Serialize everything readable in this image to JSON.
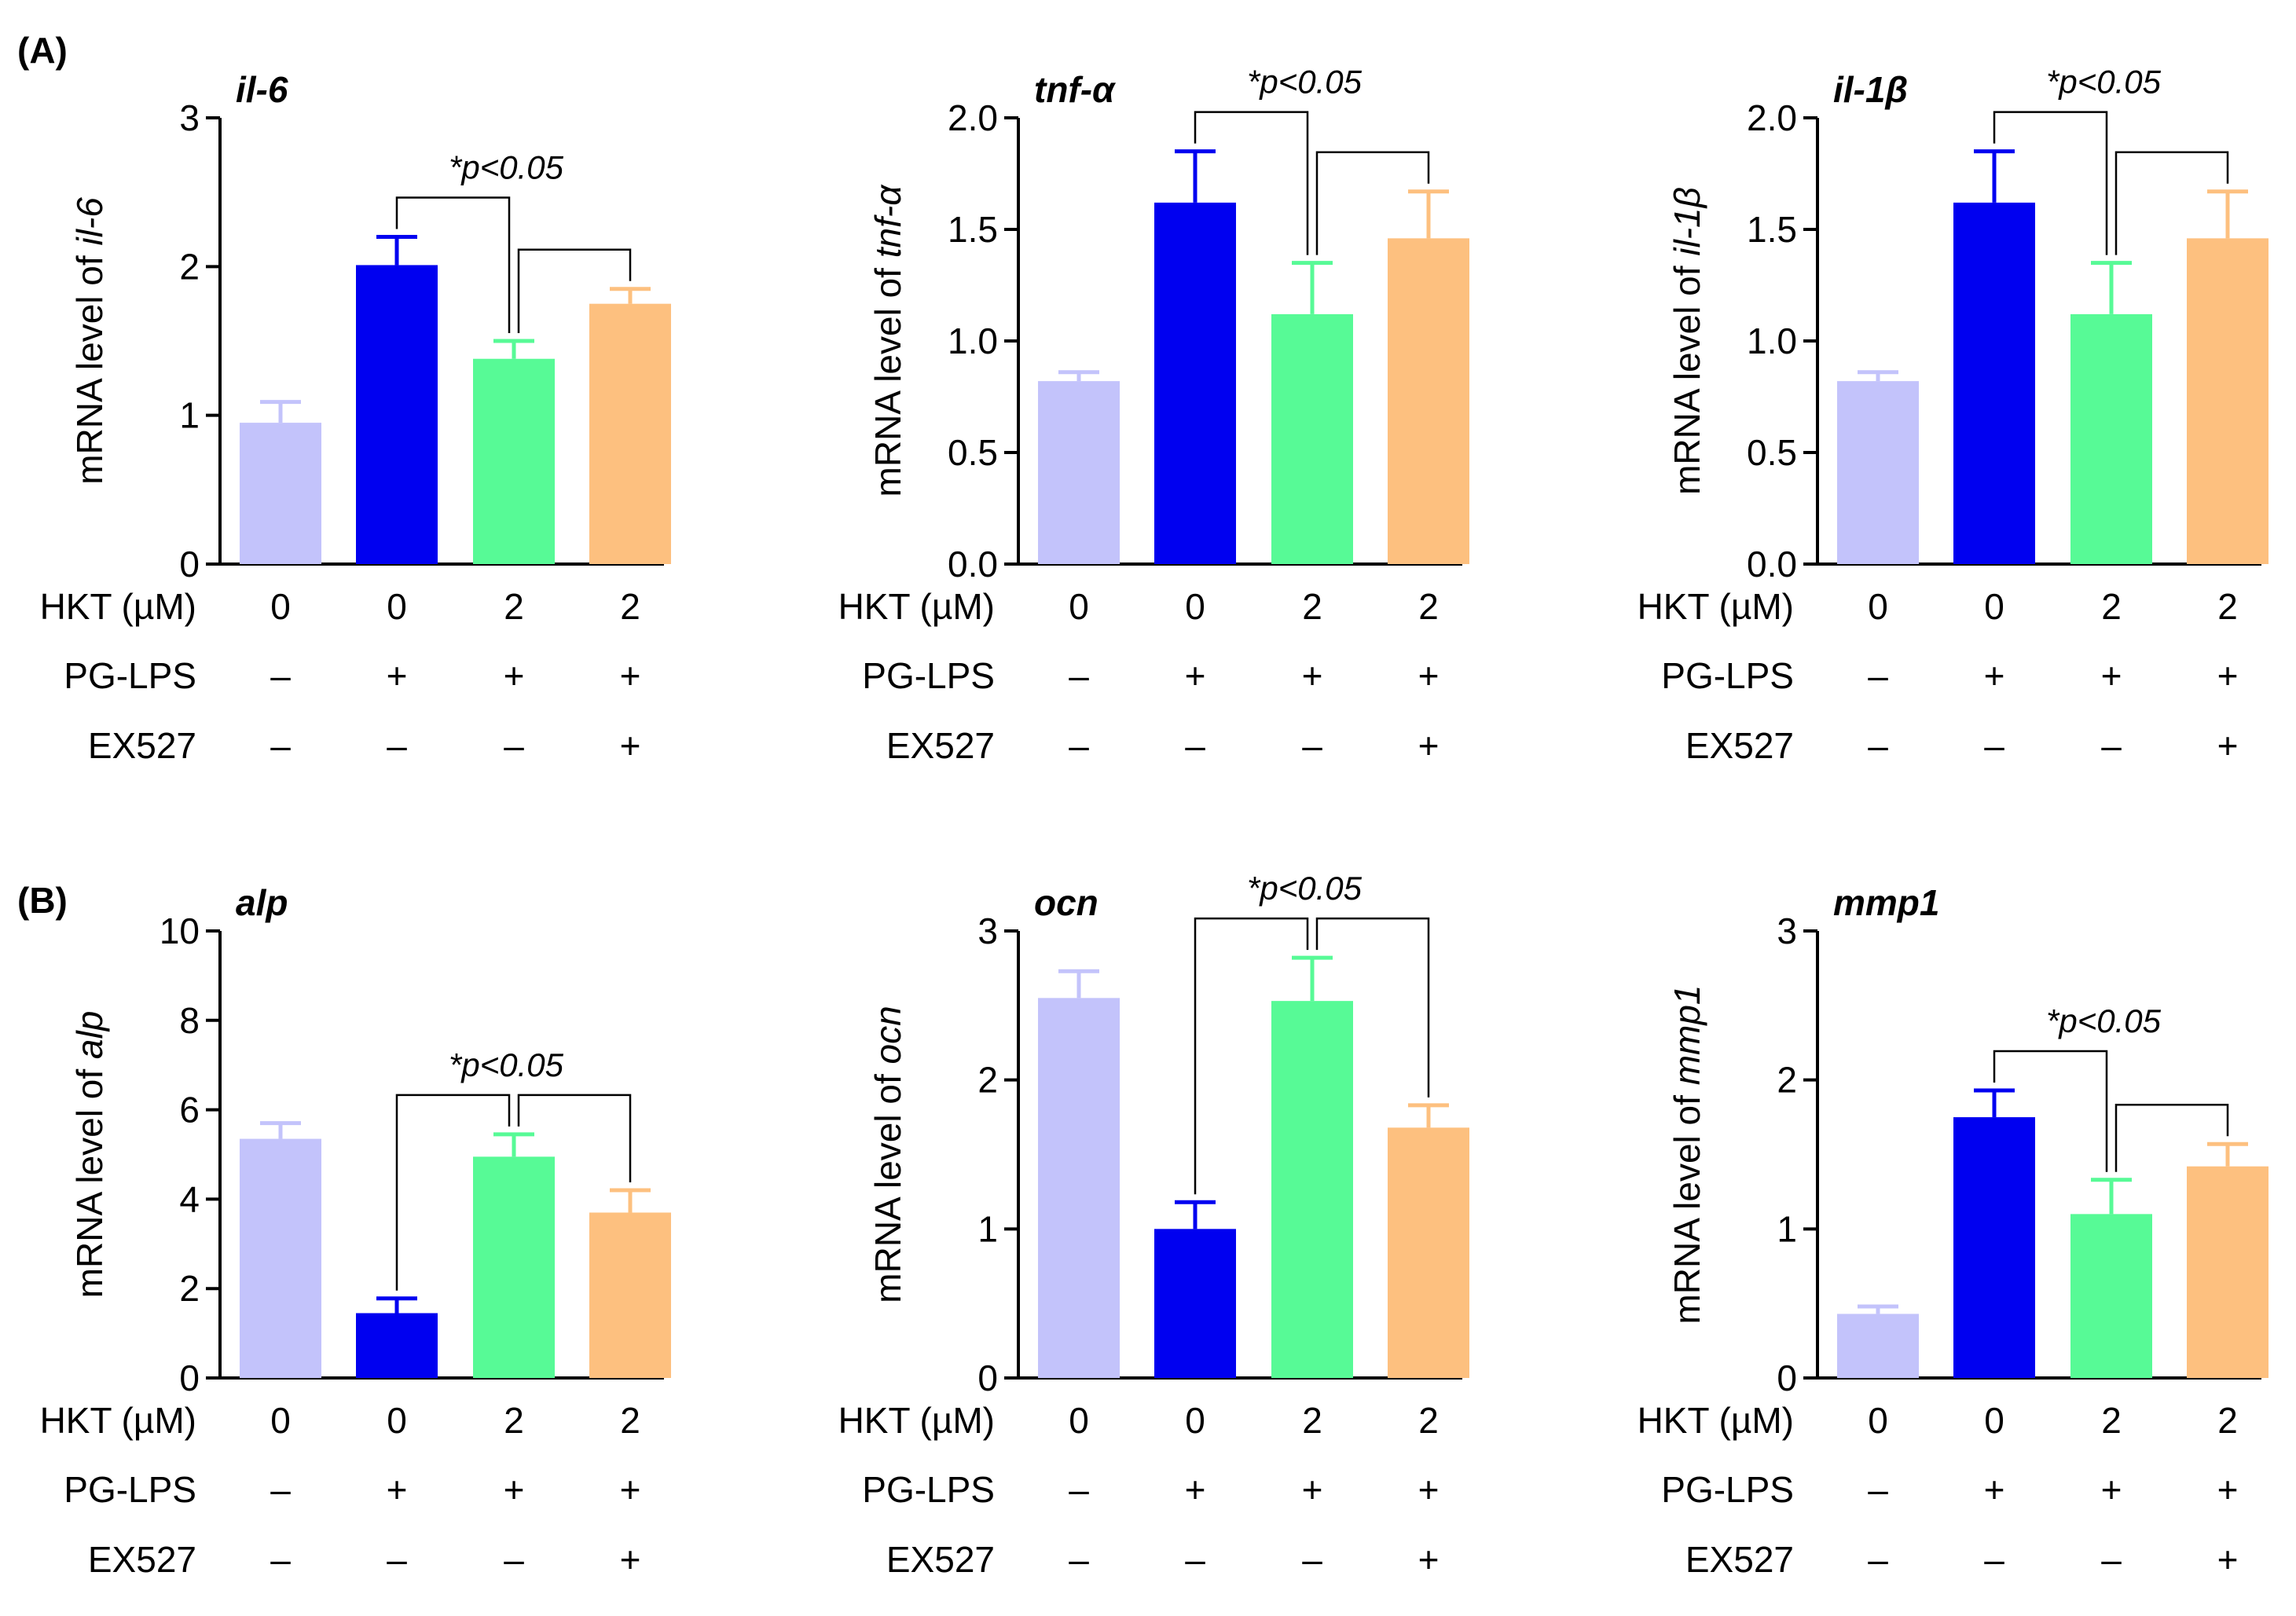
{
  "panel_labels": [
    "(A)",
    "(B)"
  ],
  "condition_rows": [
    {
      "label": "HKT (µM)",
      "values": [
        "0",
        "0",
        "2",
        "2"
      ]
    },
    {
      "label": "PG-LPS",
      "values": [
        "–",
        "+",
        "+",
        "+"
      ]
    },
    {
      "label": "EX527",
      "values": [
        "–",
        "–",
        "–",
        "+"
      ]
    }
  ],
  "colors": [
    "#c3c3fb",
    "#0000f0",
    "#57fa96",
    "#fdc07f"
  ],
  "chart_data": [
    {
      "type": "bar",
      "title": "il-6",
      "ylabel_prefix": "mRNA level of ",
      "ylabel_gene": "il-6",
      "ylim": [
        0,
        3
      ],
      "yticks": [
        0,
        1,
        2,
        3
      ],
      "tick_decimals": 0,
      "values": [
        0.95,
        2.01,
        1.38,
        1.75
      ],
      "errors": [
        0.14,
        0.19,
        0.12,
        0.1
      ],
      "significance": {
        "label": "*p<0.05",
        "target": 2,
        "compared": [
          1,
          3
        ]
      }
    },
    {
      "type": "bar",
      "title": "tnf-α",
      "ylabel_prefix": "mRNA level of ",
      "ylabel_gene": "tnf-α",
      "ylim": [
        0,
        2
      ],
      "yticks": [
        0,
        0.5,
        1,
        1.5,
        2
      ],
      "tick_decimals": 1,
      "values": [
        0.82,
        1.62,
        1.12,
        1.46
      ],
      "errors": [
        0.04,
        0.23,
        0.23,
        0.21
      ],
      "significance": {
        "label": "*p<0.05",
        "target": 2,
        "compared": [
          1,
          3
        ]
      }
    },
    {
      "type": "bar",
      "title": "il-1β",
      "ylabel_prefix": "mRNA level of ",
      "ylabel_gene": "il-1β",
      "ylim": [
        0,
        2
      ],
      "yticks": [
        0,
        0.5,
        1,
        1.5,
        2
      ],
      "tick_decimals": 1,
      "values": [
        0.82,
        1.62,
        1.12,
        1.46
      ],
      "errors": [
        0.04,
        0.23,
        0.23,
        0.21
      ],
      "significance": {
        "label": "*p<0.05",
        "target": 2,
        "compared": [
          1,
          3
        ]
      }
    },
    {
      "type": "bar",
      "title": "alp",
      "ylabel_prefix": "mRNA level of ",
      "ylabel_gene": "alp",
      "ylim": [
        0,
        10
      ],
      "yticks": [
        0,
        2,
        4,
        6,
        8,
        10
      ],
      "tick_decimals": 0,
      "values": [
        5.35,
        1.45,
        4.95,
        3.7
      ],
      "errors": [
        0.35,
        0.33,
        0.5,
        0.5
      ],
      "significance": {
        "label": "*p<0.05",
        "target": 2,
        "compared": [
          1,
          3
        ]
      }
    },
    {
      "type": "bar",
      "title": "ocn",
      "ylabel_prefix": "mRNA level of ",
      "ylabel_gene": "ocn",
      "ylim": [
        0,
        3
      ],
      "yticks": [
        0,
        1,
        2,
        3
      ],
      "tick_decimals": 0,
      "values": [
        2.55,
        1.0,
        2.53,
        1.68
      ],
      "errors": [
        0.18,
        0.18,
        0.29,
        0.15
      ],
      "significance": {
        "label": "*p<0.05",
        "target": 2,
        "compared": [
          1,
          3
        ]
      }
    },
    {
      "type": "bar",
      "title": "mmp1",
      "ylabel_prefix": "mRNA level of ",
      "ylabel_gene": "mmp1",
      "ylim": [
        0,
        3
      ],
      "yticks": [
        0,
        1,
        2,
        3
      ],
      "tick_decimals": 0,
      "values": [
        0.43,
        1.75,
        1.1,
        1.42
      ],
      "errors": [
        0.05,
        0.18,
        0.23,
        0.15
      ],
      "significance": {
        "label": "*p<0.05",
        "target": 2,
        "compared": [
          1,
          3
        ]
      }
    }
  ]
}
